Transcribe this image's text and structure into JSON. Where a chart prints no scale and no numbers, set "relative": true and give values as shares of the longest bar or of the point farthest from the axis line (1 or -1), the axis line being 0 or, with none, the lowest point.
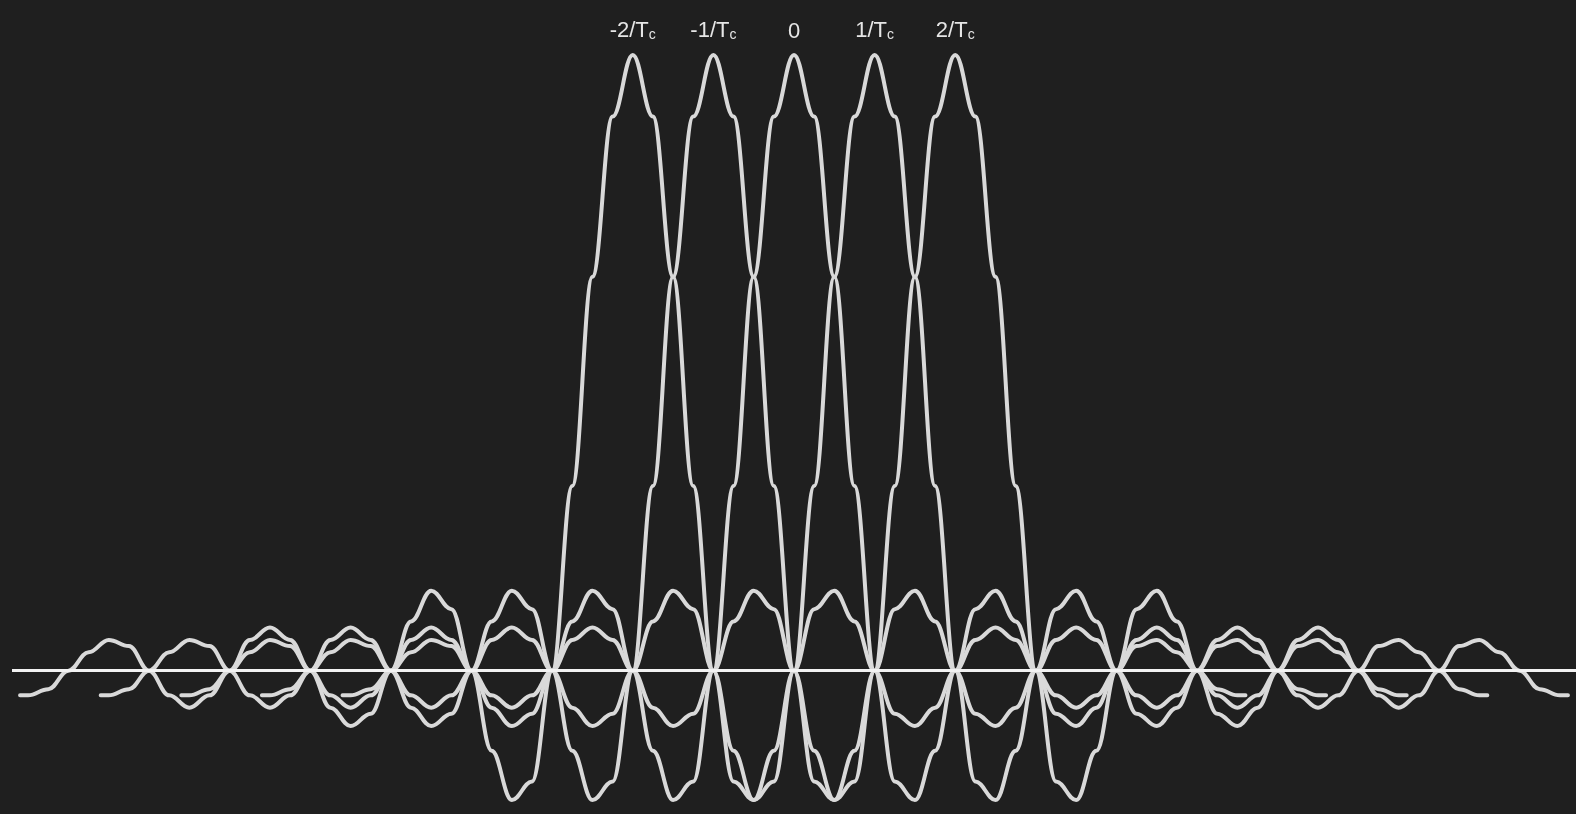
{
  "chart_data": {
    "type": "line",
    "relative": true,
    "grid": false,
    "marker": "none",
    "line_style": "solid",
    "xlim": [
      -9.7,
      9.7
    ],
    "xticks": [
      {
        "value": -2,
        "label": "-2/T$_{c}$"
      },
      {
        "value": -1,
        "label": "-1/T$_{c}$"
      },
      0,
      {
        "value": 1,
        "label": "1/T$_{c}$"
      },
      {
        "value": 2,
        "label": "2/T$_{c}$"
      }
    ],
    "tick_labels": "x",
    "ref_lines": [
      {
        "axis": "y",
        "value": 0,
        "color": "#f2f2f2"
      }
    ],
    "series": [
      {
        "color": "#d9d9d9",
        "x": [
          -9.6,
          -9.5,
          -9.25,
          -9,
          -8.75,
          -8.5,
          -8.25,
          -8,
          -7.75,
          -7.5,
          -7.25,
          -7,
          -6.75,
          -6.5,
          -6.25,
          -6,
          -5.75,
          -5.5,
          -5.25,
          -5,
          -4.75,
          -4.5,
          -4.25,
          -4,
          -3.75,
          -3.5,
          -3.25,
          -3,
          -2.75,
          -2.5,
          -2.25,
          -2,
          -1.75,
          -1.5,
          -1.25,
          -1,
          -0.75,
          -0.5,
          -0.25,
          0,
          0.25,
          0.5,
          0.75,
          1,
          1.25,
          1.5,
          1.75,
          2,
          2.25,
          2.5,
          2.75,
          3,
          3.25,
          3.5,
          3.75,
          4,
          4.25,
          4.5,
          4.75,
          5,
          5.25,
          5.5,
          5.6
        ],
        "values": [
          -0.04,
          -0.04,
          -0.03,
          0,
          0.03,
          0.05,
          0.04,
          0,
          -0.04,
          -0.06,
          -0.04,
          0,
          0.05,
          0.07,
          0.05,
          0,
          -0.06,
          -0.09,
          -0.07,
          0,
          0.08,
          0.13,
          0.1,
          0,
          -0.13,
          -0.21,
          -0.18,
          0,
          0.3,
          0.64,
          0.9,
          1,
          0.9,
          0.64,
          0.3,
          0,
          -0.18,
          -0.21,
          -0.13,
          0,
          0.1,
          0.13,
          0.08,
          0,
          -0.07,
          -0.09,
          -0.06,
          0,
          0.05,
          0.07,
          0.05,
          0,
          -0.04,
          -0.06,
          -0.04,
          0,
          0.04,
          0.05,
          0.03,
          0,
          -0.03,
          -0.04,
          -0.04
        ]
      },
      {
        "color": "#d9d9d9",
        "x": [
          -8.6,
          -8.5,
          -8.25,
          -8,
          -7.75,
          -7.5,
          -7.25,
          -7,
          -6.75,
          -6.5,
          -6.25,
          -6,
          -5.75,
          -5.5,
          -5.25,
          -5,
          -4.75,
          -4.5,
          -4.25,
          -4,
          -3.75,
          -3.5,
          -3.25,
          -3,
          -2.75,
          -2.5,
          -2.25,
          -2,
          -1.75,
          -1.5,
          -1.25,
          -1,
          -0.75,
          -0.5,
          -0.25,
          0,
          0.25,
          0.5,
          0.75,
          1,
          1.25,
          1.5,
          1.75,
          2,
          2.25,
          2.5,
          2.75,
          3,
          3.25,
          3.5,
          3.75,
          4,
          4.25,
          4.5,
          4.75,
          5,
          5.25,
          5.5,
          5.75,
          6,
          6.25,
          6.5,
          6.6
        ],
        "values": [
          -0.04,
          -0.04,
          -0.03,
          0,
          0.03,
          0.05,
          0.04,
          0,
          -0.04,
          -0.06,
          -0.04,
          0,
          0.05,
          0.07,
          0.05,
          0,
          -0.06,
          -0.09,
          -0.07,
          0,
          0.08,
          0.13,
          0.1,
          0,
          -0.13,
          -0.21,
          -0.18,
          0,
          0.3,
          0.64,
          0.9,
          1,
          0.9,
          0.64,
          0.3,
          0,
          -0.18,
          -0.21,
          -0.13,
          0,
          0.1,
          0.13,
          0.08,
          0,
          -0.07,
          -0.09,
          -0.06,
          0,
          0.05,
          0.07,
          0.05,
          0,
          -0.04,
          -0.06,
          -0.04,
          0,
          0.04,
          0.05,
          0.03,
          0,
          -0.03,
          -0.04,
          -0.04
        ]
      },
      {
        "color": "#d9d9d9",
        "x": [
          -7.6,
          -7.5,
          -7.25,
          -7,
          -6.75,
          -6.5,
          -6.25,
          -6,
          -5.75,
          -5.5,
          -5.25,
          -5,
          -4.75,
          -4.5,
          -4.25,
          -4,
          -3.75,
          -3.5,
          -3.25,
          -3,
          -2.75,
          -2.5,
          -2.25,
          -2,
          -1.75,
          -1.5,
          -1.25,
          -1,
          -0.75,
          -0.5,
          -0.25,
          0,
          0.25,
          0.5,
          0.75,
          1,
          1.25,
          1.5,
          1.75,
          2,
          2.25,
          2.5,
          2.75,
          3,
          3.25,
          3.5,
          3.75,
          4,
          4.25,
          4.5,
          4.75,
          5,
          5.25,
          5.5,
          5.75,
          6,
          6.25,
          6.5,
          6.75,
          7,
          7.25,
          7.5,
          7.6
        ],
        "values": [
          -0.04,
          -0.04,
          -0.03,
          0,
          0.03,
          0.05,
          0.04,
          0,
          -0.04,
          -0.06,
          -0.04,
          0,
          0.05,
          0.07,
          0.05,
          0,
          -0.06,
          -0.09,
          -0.07,
          0,
          0.08,
          0.13,
          0.1,
          0,
          -0.13,
          -0.21,
          -0.18,
          0,
          0.3,
          0.64,
          0.9,
          1,
          0.9,
          0.64,
          0.3,
          0,
          -0.18,
          -0.21,
          -0.13,
          0,
          0.1,
          0.13,
          0.08,
          0,
          -0.07,
          -0.09,
          -0.06,
          0,
          0.05,
          0.07,
          0.05,
          0,
          -0.04,
          -0.06,
          -0.04,
          0,
          0.04,
          0.05,
          0.03,
          0,
          -0.03,
          -0.04,
          -0.04
        ]
      },
      {
        "color": "#d9d9d9",
        "x": [
          -6.6,
          -6.5,
          -6.25,
          -6,
          -5.75,
          -5.5,
          -5.25,
          -5,
          -4.75,
          -4.5,
          -4.25,
          -4,
          -3.75,
          -3.5,
          -3.25,
          -3,
          -2.75,
          -2.5,
          -2.25,
          -2,
          -1.75,
          -1.5,
          -1.25,
          -1,
          -0.75,
          -0.5,
          -0.25,
          0,
          0.25,
          0.5,
          0.75,
          1,
          1.25,
          1.5,
          1.75,
          2,
          2.25,
          2.5,
          2.75,
          3,
          3.25,
          3.5,
          3.75,
          4,
          4.25,
          4.5,
          4.75,
          5,
          5.25,
          5.5,
          5.75,
          6,
          6.25,
          6.5,
          6.75,
          7,
          7.25,
          7.5,
          7.75,
          8,
          8.25,
          8.5,
          8.6
        ],
        "values": [
          -0.04,
          -0.04,
          -0.03,
          0,
          0.03,
          0.05,
          0.04,
          0,
          -0.04,
          -0.06,
          -0.04,
          0,
          0.05,
          0.07,
          0.05,
          0,
          -0.06,
          -0.09,
          -0.07,
          0,
          0.08,
          0.13,
          0.1,
          0,
          -0.13,
          -0.21,
          -0.18,
          0,
          0.3,
          0.64,
          0.9,
          1,
          0.9,
          0.64,
          0.3,
          0,
          -0.18,
          -0.21,
          -0.13,
          0,
          0.1,
          0.13,
          0.08,
          0,
          -0.07,
          -0.09,
          -0.06,
          0,
          0.05,
          0.07,
          0.05,
          0,
          -0.04,
          -0.06,
          -0.04,
          0,
          0.04,
          0.05,
          0.03,
          0,
          -0.03,
          -0.04,
          -0.04
        ]
      },
      {
        "color": "#d9d9d9",
        "x": [
          -5.6,
          -5.5,
          -5.25,
          -5,
          -4.75,
          -4.5,
          -4.25,
          -4,
          -3.75,
          -3.5,
          -3.25,
          -3,
          -2.75,
          -2.5,
          -2.25,
          -2,
          -1.75,
          -1.5,
          -1.25,
          -1,
          -0.75,
          -0.5,
          -0.25,
          0,
          0.25,
          0.5,
          0.75,
          1,
          1.25,
          1.5,
          1.75,
          2,
          2.25,
          2.5,
          2.75,
          3,
          3.25,
          3.5,
          3.75,
          4,
          4.25,
          4.5,
          4.75,
          5,
          5.25,
          5.5,
          5.75,
          6,
          6.25,
          6.5,
          6.75,
          7,
          7.25,
          7.5,
          7.75,
          8,
          8.25,
          8.5,
          8.75,
          9,
          9.25,
          9.5,
          9.6
        ],
        "values": [
          -0.04,
          -0.04,
          -0.03,
          0,
          0.03,
          0.05,
          0.04,
          0,
          -0.04,
          -0.06,
          -0.04,
          0,
          0.05,
          0.07,
          0.05,
          0,
          -0.06,
          -0.09,
          -0.07,
          0,
          0.08,
          0.13,
          0.1,
          0,
          -0.13,
          -0.21,
          -0.18,
          0,
          0.3,
          0.64,
          0.9,
          1,
          0.9,
          0.64,
          0.3,
          0,
          -0.18,
          -0.21,
          -0.13,
          0,
          0.1,
          0.13,
          0.08,
          0,
          -0.07,
          -0.09,
          -0.06,
          0,
          0.05,
          0.07,
          0.05,
          0,
          -0.04,
          -0.06,
          -0.04,
          0,
          0.04,
          0.05,
          0.03,
          0,
          -0.03,
          -0.04,
          -0.04
        ]
      }
    ]
  }
}
